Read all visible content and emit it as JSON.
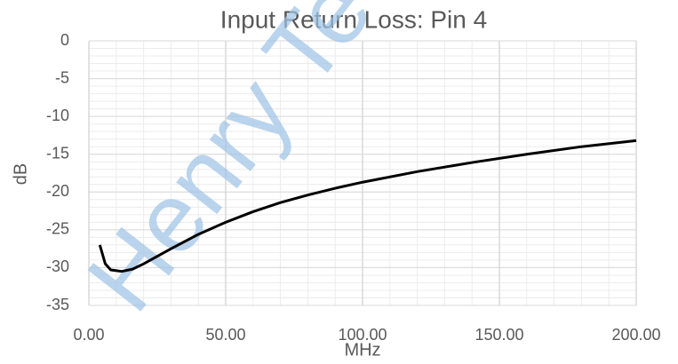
{
  "chart_data": {
    "type": "line",
    "title": "Input Return Loss: Pin 4",
    "xlabel": "MHz",
    "ylabel": "dB",
    "watermark": "Henry Te",
    "x": [
      4,
      6,
      8,
      12,
      16,
      20,
      30,
      40,
      50,
      60,
      70,
      80,
      90,
      100,
      120,
      140,
      160,
      180,
      200
    ],
    "values": [
      -27,
      -29.5,
      -30.3,
      -30.5,
      -30.2,
      -29.5,
      -27.5,
      -25.6,
      -24,
      -22.6,
      -21.4,
      -20.4,
      -19.5,
      -18.7,
      -17.3,
      -16.1,
      -15,
      -14,
      -13.2
    ],
    "color": "#000000",
    "xlim": [
      0,
      200
    ],
    "ylim": [
      -35,
      0
    ],
    "xticks": [
      {
        "value": 0,
        "label": "0.00"
      },
      {
        "value": 50,
        "label": "50.00"
      },
      {
        "value": 100,
        "label": "100.00"
      },
      {
        "value": 150,
        "label": "150.00"
      },
      {
        "value": 200,
        "label": "200.00"
      }
    ],
    "yticks": [
      0,
      -5,
      -10,
      -15,
      -20,
      -25,
      -30,
      -35
    ],
    "grid": true
  }
}
